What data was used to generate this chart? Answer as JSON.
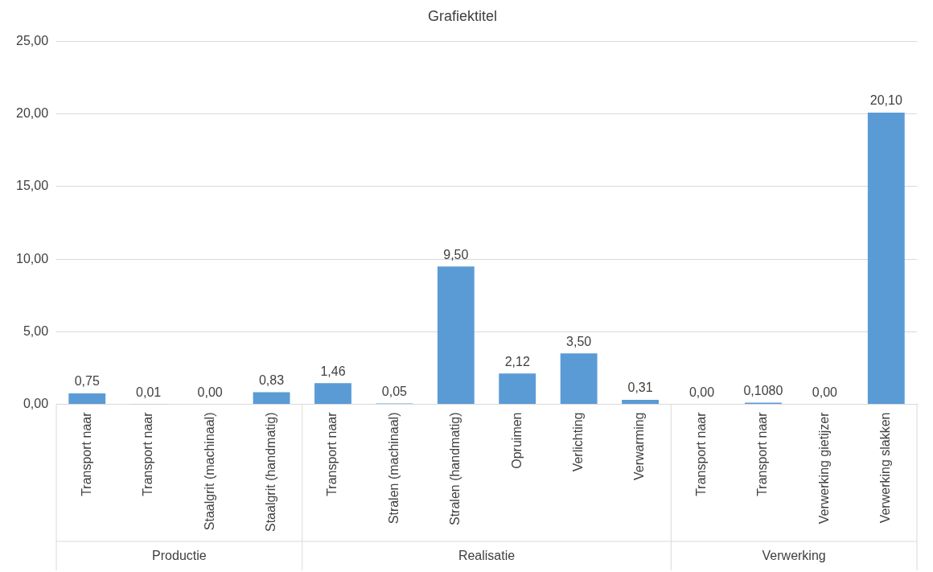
{
  "chart_data": {
    "type": "bar",
    "title": "Grafiektitel",
    "categories": [
      "Transport naar",
      "Transport naar",
      "Staalgrit (machinaal)",
      "Staalgrit (handmatig)",
      "Transport naar",
      "Stralen (machinaal)",
      "Stralen (handmatig)",
      "Opruimen",
      "Verlichting",
      "Verwarming",
      "Transport naar",
      "Transport naar",
      "Verwerking gietijzer",
      "Verwerking slakken"
    ],
    "values": [
      0.75,
      0.01,
      0.0,
      0.83,
      1.46,
      0.05,
      9.5,
      2.12,
      3.5,
      0.31,
      0.0,
      0.108,
      0.0,
      20.1
    ],
    "value_labels": [
      "0,75",
      "0,01",
      "0,00",
      "0,83",
      "1,46",
      "0,05",
      "9,50",
      "2,12",
      "3,50",
      "0,31",
      "0,00",
      "0,1080",
      "0,00",
      "20,10"
    ],
    "color": "#5b9bd5",
    "ylim": [
      0,
      25
    ],
    "yticks": [
      {
        "value": 0,
        "label": "0,00"
      },
      {
        "value": 5,
        "label": "5,00"
      },
      {
        "value": 10,
        "label": "10,00"
      },
      {
        "value": 15,
        "label": "15,00"
      },
      {
        "value": 20,
        "label": "20,00"
      },
      {
        "value": 25,
        "label": "25,00"
      }
    ],
    "grid": "y",
    "annotations": [
      "Productie",
      "Realisatie",
      "Verwerking"
    ]
  }
}
